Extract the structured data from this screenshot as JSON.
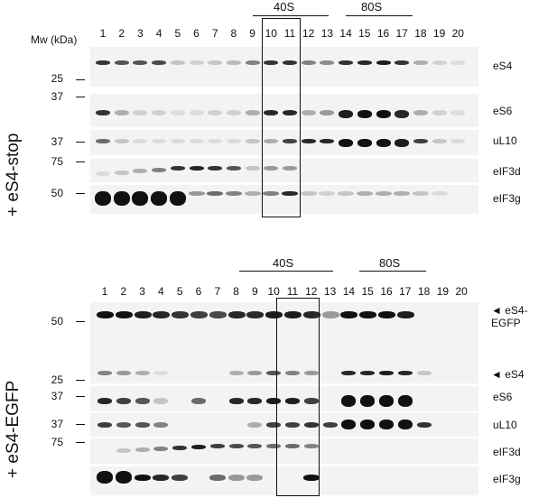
{
  "top_panel": {
    "condition_label": "+ eS4-stop",
    "mw_header": "Mw (kDa)",
    "lanes": [
      "1",
      "2",
      "3",
      "4",
      "5",
      "6",
      "7",
      "8",
      "9",
      "10",
      "11",
      "12",
      "13",
      "14",
      "15",
      "16",
      "17",
      "18",
      "19",
      "20"
    ],
    "sedimentation_markers": [
      "40S",
      "80S"
    ],
    "blots": [
      {
        "protein": "eS4",
        "mw_marker": "25"
      },
      {
        "protein": "eS6",
        "mw_marker": "37"
      },
      {
        "protein": "uL10",
        "mw_marker": "37"
      },
      {
        "protein": "eIF3d",
        "mw_marker": "75"
      },
      {
        "protein": "eIF3g",
        "mw_marker": "50"
      }
    ]
  },
  "bottom_panel": {
    "condition_label": "+ eS4-EGFP",
    "lanes": [
      "1",
      "2",
      "3",
      "4",
      "5",
      "6",
      "7",
      "8",
      "9",
      "10",
      "11",
      "12",
      "13",
      "14",
      "15",
      "16",
      "17",
      "18",
      "19",
      "20"
    ],
    "sedimentation_markers": [
      "40S",
      "80S"
    ],
    "blots": [
      {
        "protein": "eS4-EGFP",
        "mw_marker": "50",
        "arrow": "◄"
      },
      {
        "protein": "eS4",
        "mw_marker": "25",
        "arrow": "◄"
      },
      {
        "protein": "eS6",
        "mw_marker": "37"
      },
      {
        "protein": "uL10",
        "mw_marker": "37"
      },
      {
        "protein": "eIF3d",
        "mw_marker": "75"
      },
      {
        "protein": "eIF3g",
        "mw_marker": ""
      }
    ]
  }
}
